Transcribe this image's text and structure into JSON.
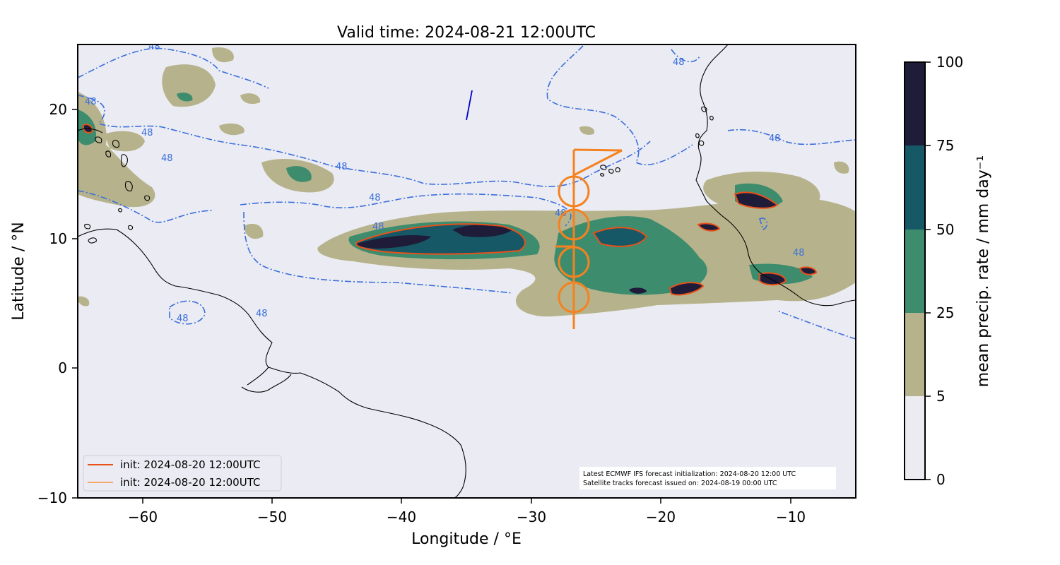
{
  "title": "Valid time: 2024-08-21 12:00UTC",
  "x_axis": {
    "label": "Longitude / °E",
    "ticks": [
      "−60",
      "−50",
      "−40",
      "−30",
      "−20",
      "−10"
    ]
  },
  "y_axis": {
    "label": "Latitude / °N",
    "ticks": [
      "20",
      "10",
      "0",
      "−10"
    ]
  },
  "colorbar": {
    "label": "mean precip. rate / mm day⁻¹",
    "ticks": [
      "0",
      "5",
      "25",
      "50",
      "75",
      "100"
    ],
    "bins": [
      {
        "from": 0,
        "to": 5,
        "color": "#ebebf1"
      },
      {
        "from": 5,
        "to": 25,
        "color": "#b6b38c"
      },
      {
        "from": 25,
        "to": 50,
        "color": "#3e8c6e"
      },
      {
        "from": 50,
        "to": 75,
        "color": "#165866"
      },
      {
        "from": 75,
        "to": 100,
        "color": "#1f1c3a"
      }
    ]
  },
  "legend": [
    {
      "label": "init: 2024-08-20 12:00UTC",
      "color": "#e8501a"
    },
    {
      "label": "init: 2024-08-20 12:00UTC",
      "color": "#f58220"
    }
  ],
  "annotation": {
    "line1": "Latest ECMWF IFS forecast initialization: 2024-08-20 12:00 UTC",
    "line2": "Satellite tracks forecast issued on: 2024-08-19 00:00 UTC"
  },
  "contour_label": "48",
  "colors": {
    "ocean": "#ebebf3",
    "contour": "#3a6fdc",
    "flight_track": "#f58220",
    "coastline": "#000000",
    "satellite_track": "#0000cc"
  }
}
